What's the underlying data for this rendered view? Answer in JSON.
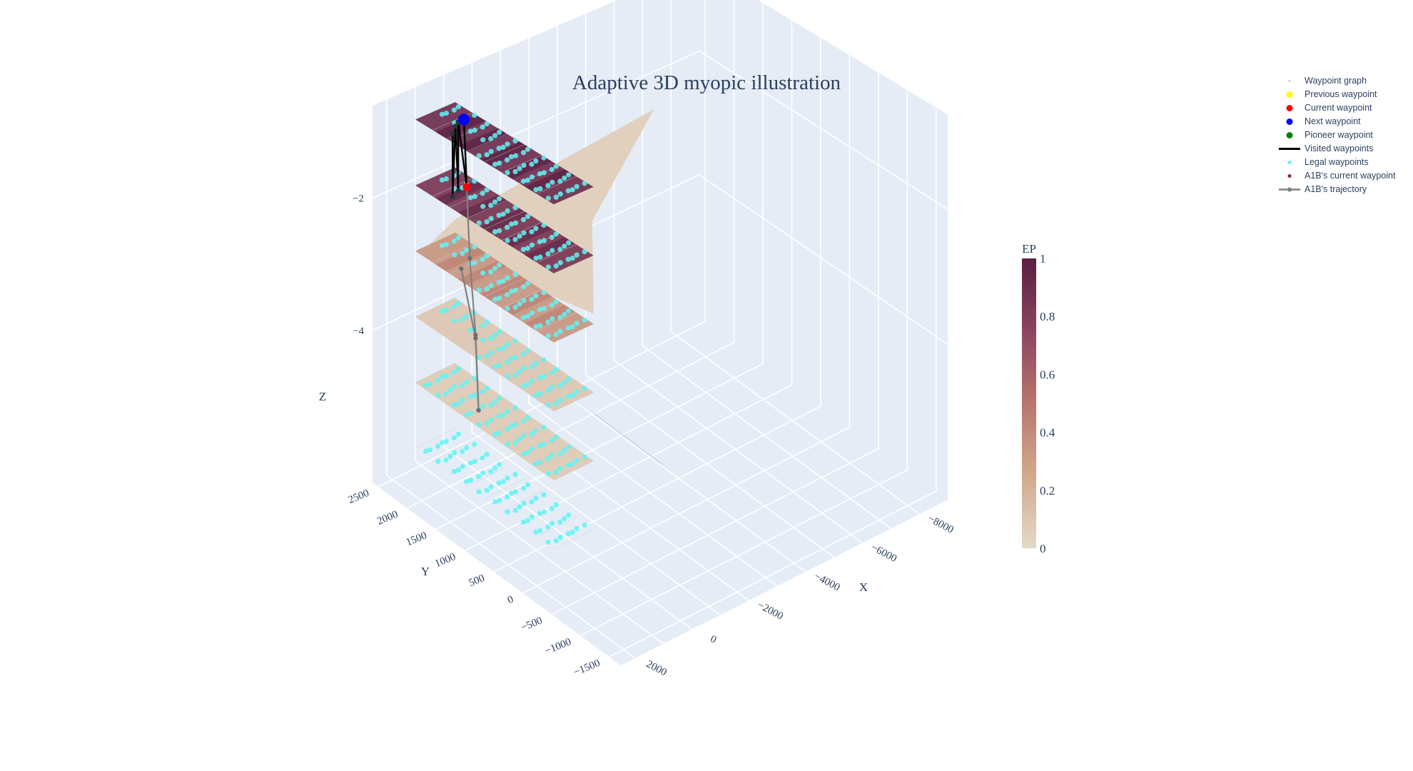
{
  "chart_data": {
    "type": "scatter3d",
    "title": "Adaptive 3D myopic illustration",
    "axes": {
      "x": {
        "label": "X",
        "ticks": [
          "2000",
          "0",
          "−2000",
          "−4000",
          "−6000",
          "−8000"
        ],
        "range": [
          2500,
          -9000
        ]
      },
      "y": {
        "label": "Y",
        "ticks": [
          "−1500",
          "−1000",
          "−500",
          "0",
          "500",
          "1000",
          "1500",
          "2000",
          "2500"
        ],
        "range": [
          -1700,
          2600
        ]
      },
      "z": {
        "label": "Z",
        "ticks": [
          "−2",
          "−4"
        ],
        "range": [
          -6.3,
          -0.6
        ]
      }
    },
    "colorbar": {
      "title": "EP",
      "ticks": [
        "0",
        "0.2",
        "0.4",
        "0.6",
        "0.8",
        "1"
      ],
      "range": [
        0,
        1
      ],
      "colors": [
        "#e3d9c7",
        "#d2a98d",
        "#b8766d",
        "#8c4560",
        "#5a1f42"
      ]
    },
    "legend": [
      {
        "label": "Waypoint graph",
        "symbol": "dot",
        "color": "#c9cdd6"
      },
      {
        "label": "Previous waypoint",
        "symbol": "dot",
        "color": "#ffff00"
      },
      {
        "label": "Current waypoint",
        "symbol": "dot",
        "color": "#ff0000"
      },
      {
        "label": "Next waypoint",
        "symbol": "dot",
        "color": "#0000ff"
      },
      {
        "label": "Pioneer waypoint",
        "symbol": "dot",
        "color": "#008000"
      },
      {
        "label": "Visited waypoints",
        "symbol": "line",
        "color": "#000000"
      },
      {
        "label": "Legal waypoints",
        "symbol": "dot",
        "color": "#5ff5f5"
      },
      {
        "label": "A1B's current waypoint",
        "symbol": "dot",
        "color": "#8b2a2a"
      },
      {
        "label": "A1B's trajectory",
        "symbol": "line-marker",
        "color": "#808080"
      }
    ],
    "layers": [
      {
        "z": -1.0,
        "ep": 0.9
      },
      {
        "z": -2.0,
        "ep": 0.85
      },
      {
        "z": -3.0,
        "ep": 0.35
      },
      {
        "z": -4.0,
        "ep": 0.1
      },
      {
        "z": -5.0,
        "ep": 0.08
      },
      {
        "z": -6.0,
        "ep": 0.0
      }
    ],
    "surface_extension": {
      "z": -3.0,
      "x_to": -7000,
      "y_to": 2400
    },
    "markers": {
      "next": {
        "x": 200,
        "y": 2150,
        "z": -1.0
      },
      "current": {
        "x": 200,
        "y": 2100,
        "z": -2.0
      }
    },
    "visited_path": [
      {
        "x": 900,
        "y": 2000,
        "z": -1.0
      },
      {
        "x": 800,
        "y": 2050,
        "z": -2.0
      },
      {
        "x": 600,
        "y": 2100,
        "z": -1.0
      },
      {
        "x": 500,
        "y": 2100,
        "z": -2.0
      },
      {
        "x": 400,
        "y": 2150,
        "z": -1.0
      },
      {
        "x": 200,
        "y": 2100,
        "z": -2.0
      },
      {
        "x": 200,
        "y": 2150,
        "z": -1.0
      }
    ],
    "a1b_trajectory": [
      {
        "x": 200,
        "y": 2100,
        "z": -2.0
      },
      {
        "x": 300,
        "y": 2000,
        "z": -3.0
      },
      {
        "x": 500,
        "y": 1800,
        "z": -4.0
      },
      {
        "x": 700,
        "y": 1650,
        "z": -5.0
      },
      {
        "x": 600,
        "y": 1750,
        "z": -4.0
      },
      {
        "x": 800,
        "y": 1900,
        "z": -3.0
      }
    ]
  }
}
